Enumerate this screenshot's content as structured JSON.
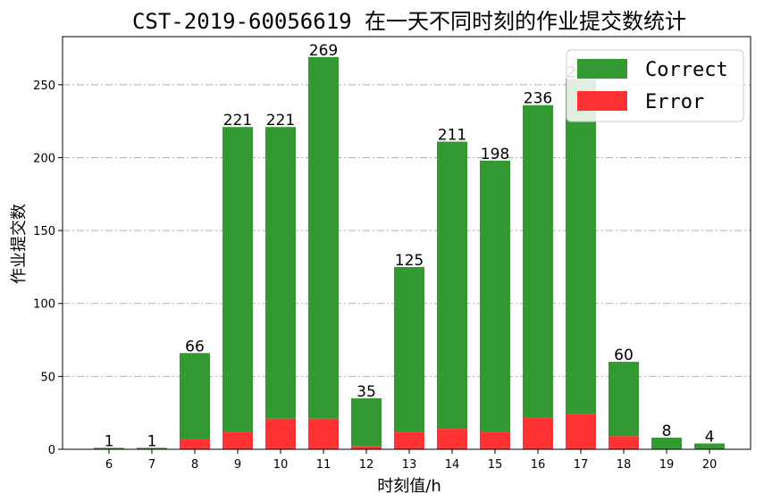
{
  "chart_data": {
    "type": "bar",
    "title": "CST-2019-60056619 在一天不同时刻的作业提交数统计",
    "xlabel": "时刻值/h",
    "ylabel": "作业提交数",
    "categories": [
      "6",
      "7",
      "8",
      "9",
      "10",
      "11",
      "12",
      "13",
      "14",
      "15",
      "16",
      "17",
      "18",
      "19",
      "20"
    ],
    "stacked": true,
    "series": [
      {
        "name": "Correct",
        "color": "#339933",
        "values": [
          1,
          1,
          59,
          209,
          200,
          248,
          33,
          113,
          197,
          186,
          214,
          230,
          51,
          8,
          4
        ]
      },
      {
        "name": "Error",
        "color": "#ff3333",
        "values": [
          0,
          0,
          7,
          12,
          21,
          21,
          2,
          12,
          14,
          12,
          22,
          24,
          9,
          0,
          0
        ]
      }
    ],
    "totals": [
      1,
      1,
      66,
      221,
      221,
      269,
      35,
      125,
      211,
      198,
      236,
      254,
      60,
      8,
      4
    ],
    "ylim": [
      0,
      283
    ],
    "yticks": [
      0,
      50,
      100,
      150,
      200,
      250
    ],
    "grid": "horizontal dash-dot",
    "legend_position": "top-right"
  }
}
